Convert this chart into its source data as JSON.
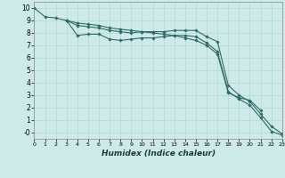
{
  "xlabel": "Humidex (Indice chaleur)",
  "background_color": "#ceeae8",
  "grid_color": "#b0d8d5",
  "line_color": "#2d6b67",
  "x_values": [
    0,
    1,
    2,
    3,
    4,
    5,
    6,
    7,
    8,
    9,
    10,
    11,
    12,
    13,
    14,
    15,
    16,
    17,
    18,
    19,
    20,
    21,
    22,
    23
  ],
  "line1": [
    10.0,
    9.3,
    9.2,
    9.0,
    8.8,
    8.7,
    8.6,
    8.4,
    8.3,
    8.2,
    8.1,
    8.0,
    7.9,
    7.8,
    7.6,
    7.4,
    7.0,
    6.3,
    3.2,
    2.8,
    2.6,
    1.8,
    null,
    null
  ],
  "line2": [
    10.0,
    null,
    null,
    9.0,
    8.6,
    8.5,
    8.4,
    8.2,
    8.1,
    8.0,
    8.1,
    8.1,
    8.1,
    8.2,
    8.2,
    8.2,
    7.7,
    7.3,
    3.8,
    3.0,
    2.5,
    1.5,
    0.5,
    -0.1
  ],
  "line3": [
    10.0,
    null,
    null,
    9.0,
    7.8,
    7.9,
    7.9,
    7.5,
    7.4,
    7.5,
    7.6,
    7.6,
    7.7,
    7.8,
    7.8,
    7.7,
    7.2,
    6.5,
    3.3,
    2.7,
    2.2,
    1.2,
    0.1,
    -0.2
  ],
  "xlim": [
    0,
    23
  ],
  "ylim": [
    -0.5,
    10.5
  ],
  "yticks": [
    0,
    1,
    2,
    3,
    4,
    5,
    6,
    7,
    8,
    9,
    10
  ],
  "ytick_labels": [
    "-0",
    "1",
    "2",
    "3",
    "4",
    "5",
    "6",
    "7",
    "8",
    "9",
    "10"
  ],
  "xticks": [
    0,
    1,
    2,
    3,
    4,
    5,
    6,
    7,
    8,
    9,
    10,
    11,
    12,
    13,
    14,
    15,
    16,
    17,
    18,
    19,
    20,
    21,
    22,
    23
  ]
}
